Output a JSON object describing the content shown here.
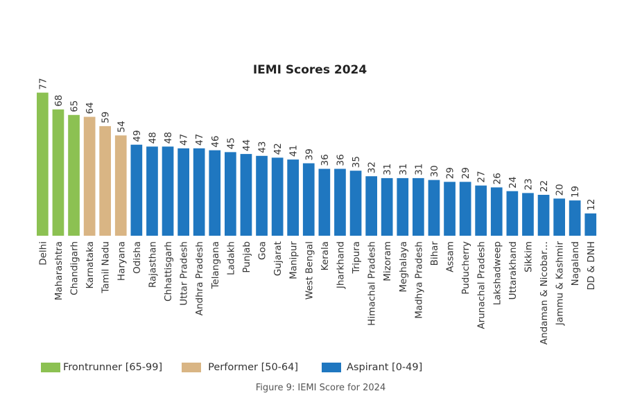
{
  "chart_data": {
    "type": "bar",
    "title": "IEMI Scores 2024",
    "xlabel": "",
    "ylabel": "",
    "ylim": [
      0,
      80
    ],
    "grid": false,
    "orientation": "vertical",
    "value_labels": true,
    "categories": [
      "Delhi",
      "Maharashtra",
      "Chandigarh",
      "Karnataka",
      "Tamil Nadu",
      "Haryana",
      "Odisha",
      "Rajasthan",
      "Chhattisgarh",
      "Uttar Pradesh",
      "Andhra Pradesh",
      "Telangana",
      "Ladakh",
      "Punjab",
      "Goa",
      "Gujarat",
      "Manipur",
      "West Bengal",
      "Kerala",
      "Jharkhand",
      "Tripura",
      "Himachal Pradesh",
      "Mizoram",
      "Meghalaya",
      "Madhya Pradesh",
      "Bihar",
      "Assam",
      "Puducherry",
      "Arunachal Pradesh",
      "Lakshadweep",
      "Uttarakhand",
      "Sikkim",
      "Andaman & Nicobar…",
      "Jammu & Kashmir",
      "Nagaland",
      "DD & DNH"
    ],
    "values": [
      77,
      68,
      65,
      64,
      59,
      54,
      49,
      48,
      48,
      47,
      47,
      46,
      45,
      44,
      43,
      42,
      41,
      39,
      36,
      36,
      35,
      32,
      31,
      31,
      31,
      30,
      29,
      29,
      27,
      26,
      24,
      23,
      22,
      20,
      19,
      12
    ],
    "groups": [
      "Frontrunner",
      "Frontrunner",
      "Frontrunner",
      "Performer",
      "Performer",
      "Performer",
      "Aspirant",
      "Aspirant",
      "Aspirant",
      "Aspirant",
      "Aspirant",
      "Aspirant",
      "Aspirant",
      "Aspirant",
      "Aspirant",
      "Aspirant",
      "Aspirant",
      "Aspirant",
      "Aspirant",
      "Aspirant",
      "Aspirant",
      "Aspirant",
      "Aspirant",
      "Aspirant",
      "Aspirant",
      "Aspirant",
      "Aspirant",
      "Aspirant",
      "Aspirant",
      "Aspirant",
      "Aspirant",
      "Aspirant",
      "Aspirant",
      "Aspirant",
      "Aspirant",
      "Aspirant"
    ],
    "legend": {
      "placement": "bottom-left",
      "entries": [
        {
          "key": "Frontrunner",
          "label": "Frontrunner [65-99]",
          "color": "#8cc152"
        },
        {
          "key": "Performer",
          "label": "Performer [50-64]",
          "color": "#d9b584"
        },
        {
          "key": "Aspirant",
          "label": "Aspirant [0-49]",
          "color": "#1f77c0"
        }
      ]
    },
    "caption": "Figure 9: IEMI Score for 2024"
  }
}
